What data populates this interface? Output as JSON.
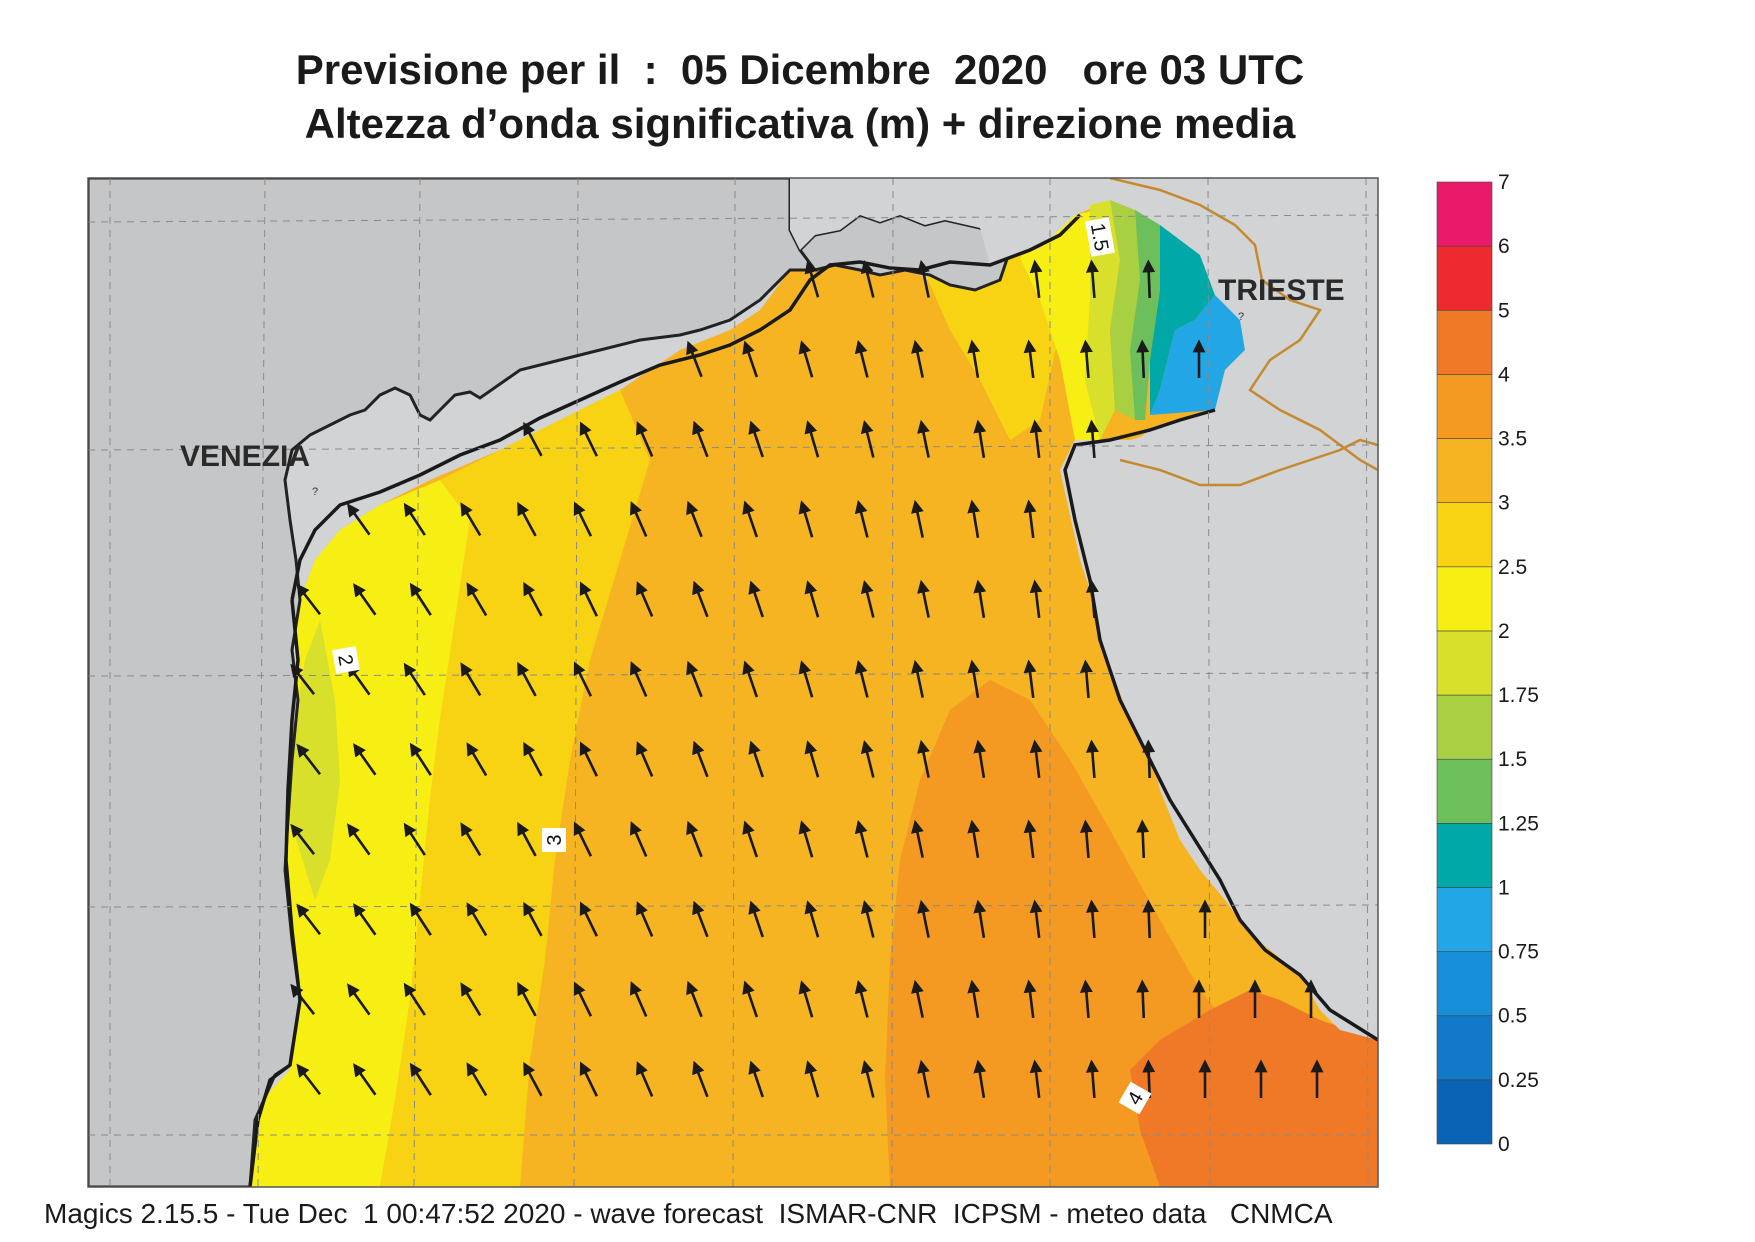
{
  "title_line1": "Previsione per il  :  05 Dicembre  2020   ore 03 UTC",
  "title_line2": "Altezza d’onda significativa (m) + direzione media",
  "cities": {
    "venezia": "VENEZIA",
    "trieste": "TRIESTE"
  },
  "contour_labels": {
    "c15": "1.5",
    "c2": "2",
    "c3": "3",
    "c4": "4"
  },
  "footer": "Magics 2.15.5 - Tue Dec  1 00:47:52 2020 - wave forecast  ISMAR-CNR  ICPSM - meteo data   CNMCA",
  "colorbar": {
    "labels": [
      "0",
      "0.25",
      "0.5",
      "0.75",
      "1",
      "1.25",
      "1.5",
      "1.75",
      "2",
      "2.5",
      "3",
      "3.5",
      "4",
      "5",
      "6",
      "7"
    ],
    "colors": [
      "#0a63b5",
      "#1278c8",
      "#178ed8",
      "#23a6e6",
      "#00a9a8",
      "#6cbf5a",
      "#a9cf43",
      "#d8e02c",
      "#f7ef14",
      "#f8d313",
      "#f6b322",
      "#f49a23",
      "#f07927",
      "#ee2930",
      "#ea1a6a"
    ]
  },
  "colors": {
    "land": "#d2d3d5",
    "coast": "#222222",
    "border": "#c58a2e"
  }
}
